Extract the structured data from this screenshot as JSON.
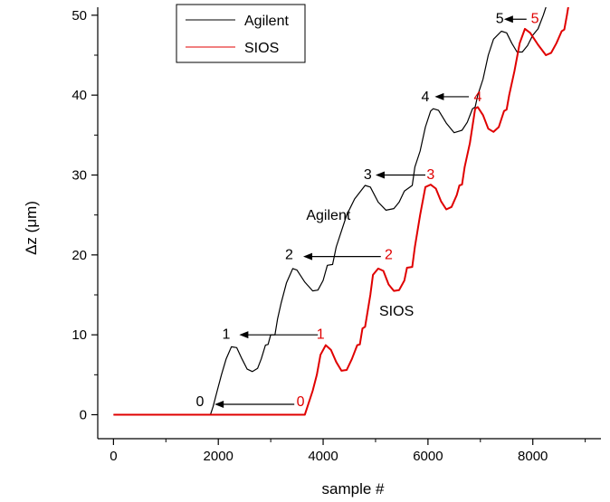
{
  "chart_data": {
    "type": "line",
    "xlabel": "sample #",
    "ylabel": "Δz (μm)",
    "xlim": [
      -300,
      9300
    ],
    "ylim": [
      -3,
      51
    ],
    "x_ticks": [
      0,
      2000,
      4000,
      6000,
      8000
    ],
    "x_tick_labels": [
      "0",
      "2000",
      "4000",
      "6000",
      "8000"
    ],
    "y_ticks": [
      0,
      10,
      20,
      30,
      40,
      50
    ],
    "y_tick_labels": [
      "0",
      "10",
      "20",
      "30",
      "40",
      "50"
    ],
    "grid": false,
    "legend": {
      "position": "top-left",
      "entries": [
        {
          "label": "Agilent",
          "color": "#000000"
        },
        {
          "label": "SIOS",
          "color": "#e00000"
        }
      ]
    },
    "series": [
      {
        "name": "Agilent",
        "color": "#000000",
        "points": [
          [
            0,
            0
          ],
          [
            1850,
            0
          ],
          [
            1900,
            1
          ],
          [
            1980,
            3
          ],
          [
            2060,
            5
          ],
          [
            2150,
            7
          ],
          [
            2250,
            8.5
          ],
          [
            2350,
            8.4
          ],
          [
            2450,
            7
          ],
          [
            2550,
            5.7
          ],
          [
            2650,
            5.4
          ],
          [
            2750,
            5.8
          ],
          [
            2820,
            7
          ],
          [
            2900,
            8.7
          ],
          [
            2950,
            8.8
          ],
          [
            3000,
            10
          ],
          [
            3080,
            10
          ],
          [
            3130,
            12
          ],
          [
            3200,
            14
          ],
          [
            3300,
            16.5
          ],
          [
            3420,
            18.3
          ],
          [
            3500,
            18.1
          ],
          [
            3650,
            16.6
          ],
          [
            3800,
            15.5
          ],
          [
            3900,
            15.6
          ],
          [
            4000,
            16.8
          ],
          [
            4080,
            18.7
          ],
          [
            4180,
            18.8
          ],
          [
            4250,
            21
          ],
          [
            4350,
            23
          ],
          [
            4450,
            25
          ],
          [
            4600,
            27
          ],
          [
            4800,
            28.7
          ],
          [
            4900,
            28.5
          ],
          [
            5050,
            26.6
          ],
          [
            5200,
            25.6
          ],
          [
            5350,
            25.8
          ],
          [
            5450,
            26.6
          ],
          [
            5550,
            28
          ],
          [
            5700,
            28.7
          ],
          [
            5750,
            31
          ],
          [
            5850,
            33
          ],
          [
            5950,
            36
          ],
          [
            6050,
            38
          ],
          [
            6100,
            38.3
          ],
          [
            6200,
            38.1
          ],
          [
            6350,
            36.5
          ],
          [
            6500,
            35.3
          ],
          [
            6650,
            35.6
          ],
          [
            6750,
            36.6
          ],
          [
            6850,
            38.3
          ],
          [
            6900,
            38.5
          ],
          [
            6950,
            40
          ],
          [
            7050,
            42
          ],
          [
            7150,
            45
          ],
          [
            7250,
            47
          ],
          [
            7400,
            48
          ],
          [
            7500,
            47.8
          ],
          [
            7600,
            46.5
          ],
          [
            7700,
            45.4
          ],
          [
            7800,
            45.4
          ],
          [
            7900,
            46.2
          ],
          [
            8000,
            47.5
          ],
          [
            8100,
            48.3
          ],
          [
            8200,
            50
          ],
          [
            8300,
            52
          ]
        ]
      },
      {
        "name": "SIOS",
        "color": "#e00000",
        "points": [
          [
            0,
            0
          ],
          [
            3650,
            0
          ],
          [
            3700,
            1
          ],
          [
            3800,
            3
          ],
          [
            3880,
            5
          ],
          [
            3950,
            7.5
          ],
          [
            4050,
            8.7
          ],
          [
            4150,
            8.1
          ],
          [
            4250,
            6.6
          ],
          [
            4350,
            5.5
          ],
          [
            4450,
            5.6
          ],
          [
            4550,
            7
          ],
          [
            4650,
            8.7
          ],
          [
            4700,
            8.8
          ],
          [
            4750,
            10.8
          ],
          [
            4800,
            11
          ],
          [
            4850,
            13
          ],
          [
            4900,
            15
          ],
          [
            4950,
            17.5
          ],
          [
            5050,
            18.3
          ],
          [
            5150,
            18
          ],
          [
            5250,
            16.3
          ],
          [
            5350,
            15.5
          ],
          [
            5450,
            15.6
          ],
          [
            5550,
            16.8
          ],
          [
            5600,
            18.4
          ],
          [
            5700,
            18.5
          ],
          [
            5750,
            21
          ],
          [
            5850,
            25
          ],
          [
            5950,
            28.5
          ],
          [
            6050,
            28.8
          ],
          [
            6150,
            28.3
          ],
          [
            6250,
            26.7
          ],
          [
            6350,
            25.7
          ],
          [
            6450,
            26
          ],
          [
            6550,
            27.5
          ],
          [
            6600,
            28.7
          ],
          [
            6650,
            28.8
          ],
          [
            6700,
            31
          ],
          [
            6800,
            34
          ],
          [
            6900,
            38.3
          ],
          [
            6950,
            38.5
          ],
          [
            7050,
            37.5
          ],
          [
            7150,
            35.8
          ],
          [
            7250,
            35.4
          ],
          [
            7350,
            36
          ],
          [
            7450,
            38
          ],
          [
            7500,
            38.2
          ],
          [
            7550,
            40
          ],
          [
            7650,
            43
          ],
          [
            7750,
            46.5
          ],
          [
            7850,
            48.3
          ],
          [
            7950,
            47.8
          ],
          [
            8100,
            46.3
          ],
          [
            8250,
            45
          ],
          [
            8350,
            45.3
          ],
          [
            8450,
            46.5
          ],
          [
            8550,
            48
          ],
          [
            8600,
            48.2
          ],
          [
            8650,
            50
          ],
          [
            8700,
            52
          ]
        ]
      }
    ],
    "annotations": [
      {
        "label": "0",
        "color": "#000000",
        "x": 1650,
        "y": 1.1,
        "anchor": "middle"
      },
      {
        "label": "0",
        "color": "#e00000",
        "x": 3570,
        "y": 1.1,
        "anchor": "middle"
      },
      {
        "label": "1",
        "color": "#000000",
        "x": 2150,
        "y": 9.5,
        "anchor": "middle"
      },
      {
        "label": "1",
        "color": "#e00000",
        "x": 3950,
        "y": 9.5,
        "anchor": "middle"
      },
      {
        "label": "2",
        "color": "#000000",
        "x": 3350,
        "y": 19.5,
        "anchor": "middle"
      },
      {
        "label": "2",
        "color": "#e00000",
        "x": 5250,
        "y": 19.5,
        "anchor": "middle"
      },
      {
        "label": "3",
        "color": "#000000",
        "x": 4850,
        "y": 29.5,
        "anchor": "middle"
      },
      {
        "label": "3",
        "color": "#e00000",
        "x": 6050,
        "y": 29.5,
        "anchor": "middle"
      },
      {
        "label": "4",
        "color": "#000000",
        "x": 5950,
        "y": 39.2,
        "anchor": "middle"
      },
      {
        "label": "4",
        "color": "#e00000",
        "x": 6950,
        "y": 39.2,
        "anchor": "middle"
      },
      {
        "label": "5",
        "color": "#000000",
        "x": 7370,
        "y": 49,
        "anchor": "middle"
      },
      {
        "label": "5",
        "color": "#e00000",
        "x": 8040,
        "y": 49,
        "anchor": "middle"
      },
      {
        "label": "Agilent",
        "color": "#000000",
        "x": 4100,
        "y": 24.4,
        "anchor": "middle"
      },
      {
        "label": "SIOS",
        "color": "#000000",
        "x": 5400,
        "y": 12.4,
        "anchor": "middle"
      }
    ],
    "arrows": [
      {
        "from": [
          3450,
          1.3
        ],
        "to": [
          1930,
          1.3
        ]
      },
      {
        "from": [
          3900,
          10
        ],
        "to": [
          2400,
          10
        ]
      },
      {
        "from": [
          5100,
          19.8
        ],
        "to": [
          3620,
          19.8
        ]
      },
      {
        "from": [
          5950,
          30
        ],
        "to": [
          5000,
          30
        ]
      },
      {
        "from": [
          6780,
          39.8
        ],
        "to": [
          6130,
          39.8
        ]
      },
      {
        "from": [
          7880,
          49.5
        ],
        "to": [
          7450,
          49.5
        ]
      }
    ]
  }
}
